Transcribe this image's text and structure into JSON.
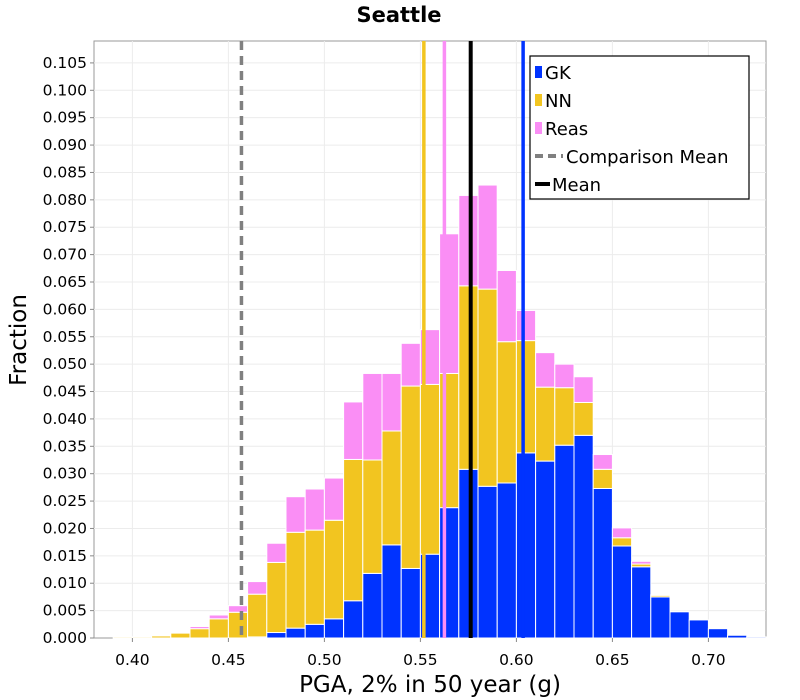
{
  "chart_data": {
    "type": "bar",
    "title": "Seattle",
    "xlabel": "PGA, 2% in 50 year (g)",
    "ylabel": "Fraction",
    "xlim": [
      0.38,
      0.73
    ],
    "ylim": [
      0,
      0.109
    ],
    "bin_width": 0.01,
    "grid": true,
    "legend_position": "top-right",
    "x_ticks": [
      "0.40",
      "0.45",
      "0.50",
      "0.55",
      "0.60",
      "0.65",
      "0.70"
    ],
    "y_ticks": [
      "0.000",
      "0.005",
      "0.010",
      "0.015",
      "0.020",
      "0.025",
      "0.030",
      "0.035",
      "0.040",
      "0.045",
      "0.050",
      "0.055",
      "0.060",
      "0.065",
      "0.070",
      "0.075",
      "0.080",
      "0.085",
      "0.090",
      "0.095",
      "0.100",
      "0.105"
    ],
    "bin_starts": [
      0.39,
      0.4,
      0.41,
      0.42,
      0.43,
      0.44,
      0.45,
      0.46,
      0.47,
      0.48,
      0.49,
      0.5,
      0.51,
      0.52,
      0.53,
      0.54,
      0.55,
      0.56,
      0.57,
      0.58,
      0.59,
      0.6,
      0.61,
      0.62,
      0.63,
      0.64,
      0.65,
      0.66,
      0.67,
      0.68,
      0.69,
      0.7,
      0.71,
      0.72
    ],
    "series": [
      {
        "name": "GK",
        "color": "#0033ff",
        "values": [
          0,
          0,
          0,
          0,
          0,
          0,
          0,
          0.0002,
          0.001,
          0.0018,
          0.0025,
          0.0035,
          0.0068,
          0.0118,
          0.017,
          0.0127,
          0.0153,
          0.0238,
          0.0308,
          0.0277,
          0.0283,
          0.0338,
          0.0323,
          0.0352,
          0.037,
          0.0273,
          0.0168,
          0.013,
          0.0075,
          0.0048,
          0.0033,
          0.0017,
          0.0005,
          0.0002
        ]
      },
      {
        "name": "NN",
        "color": "#f2c520",
        "values": [
          0.0002,
          0.0002,
          0.0004,
          0.0009,
          0.0017,
          0.0035,
          0.0047,
          0.0078,
          0.0128,
          0.0175,
          0.0172,
          0.018,
          0.0258,
          0.0207,
          0.0208,
          0.0333,
          0.031,
          0.0245,
          0.0335,
          0.036,
          0.0258,
          0.0205,
          0.0135,
          0.0105,
          0.006,
          0.0035,
          0.0015,
          0.0005,
          0.0003,
          0.0001,
          0,
          0,
          0,
          0
        ]
      },
      {
        "name": "Reas",
        "color": "#fa8ef5",
        "values": [
          0,
          0,
          0.0001,
          0.0001,
          0.0004,
          0.0007,
          0.0012,
          0.0023,
          0.0035,
          0.0065,
          0.0075,
          0.0077,
          0.0105,
          0.0158,
          0.0105,
          0.0078,
          0.01,
          0.0255,
          0.0165,
          0.019,
          0.013,
          0.0055,
          0.0063,
          0.0043,
          0.0047,
          0.0027,
          0.0018,
          0.0005,
          0.0001,
          0,
          0,
          0,
          0,
          0
        ]
      }
    ],
    "vertical_lines": [
      {
        "name": "GK mean",
        "x": 0.6035,
        "color": "#0033ff",
        "style": "solid",
        "legend": false
      },
      {
        "name": "NN mean",
        "x": 0.5518,
        "color": "#f2c520",
        "style": "solid",
        "legend": false
      },
      {
        "name": "Reas mean",
        "x": 0.5625,
        "color": "#fa8ef5",
        "style": "solid",
        "legend": false
      },
      {
        "name": "Comparison Mean",
        "x": 0.4568,
        "color": "#808080",
        "style": "dashed",
        "legend": true
      },
      {
        "name": "Mean",
        "x": 0.5762,
        "color": "#000000",
        "style": "solid",
        "legend": true
      }
    ]
  }
}
